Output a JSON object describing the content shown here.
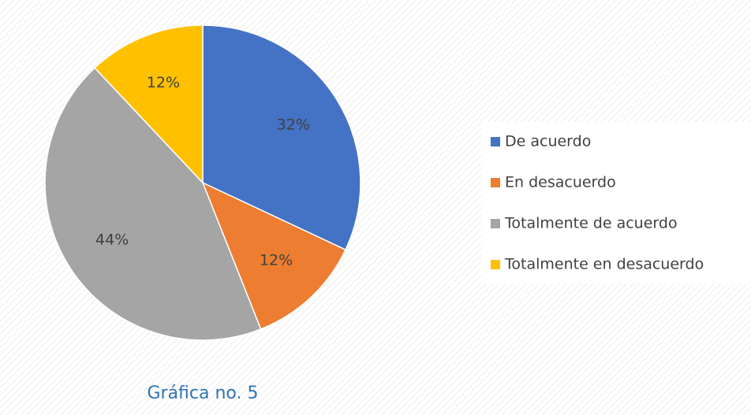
{
  "chart_data": {
    "type": "pie",
    "title": "Gráfica no. 5",
    "categories": [
      "De acuerdo",
      "En desacuerdo",
      "Totalmente de acuerdo",
      "Totalmente en desacuerdo"
    ],
    "values": [
      32,
      12,
      44,
      12
    ],
    "value_labels": [
      "32%",
      "12%",
      "44%",
      "12%"
    ],
    "colors": [
      "#4472c4",
      "#ed7d31",
      "#a5a5a5",
      "#ffc000"
    ],
    "legend": "right"
  }
}
